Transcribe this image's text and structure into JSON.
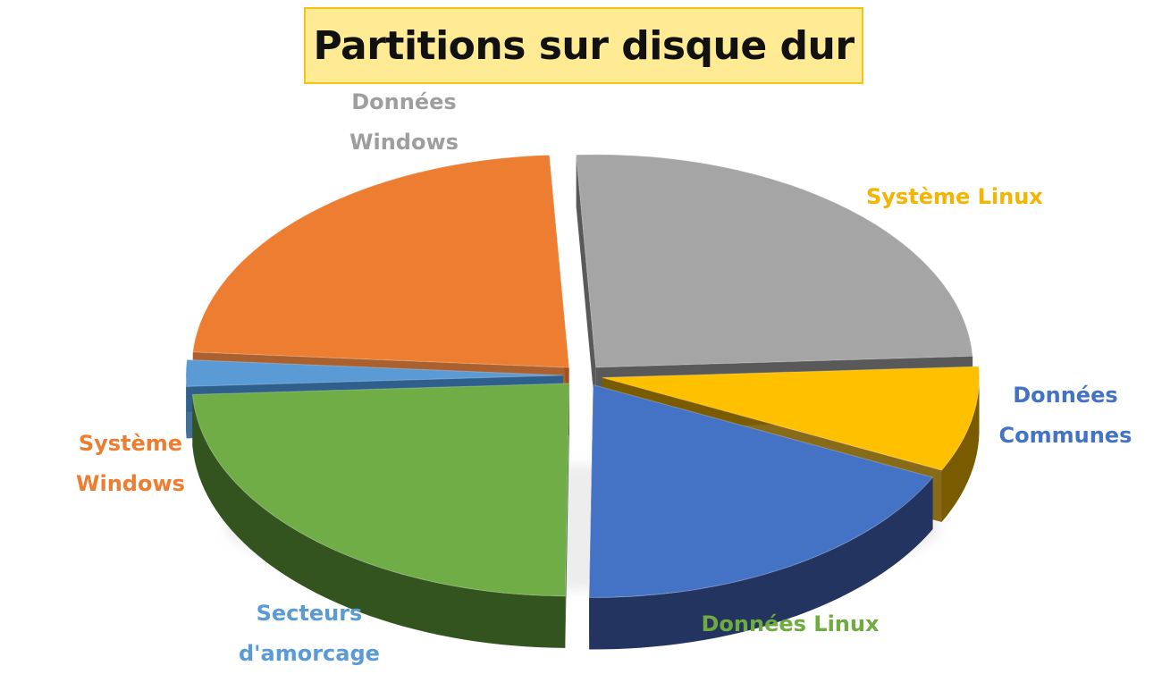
{
  "title": "Partitions sur disque dur",
  "chart_data": {
    "type": "pie",
    "title": "Partitions sur disque dur",
    "legend": "none",
    "slices": [
      {
        "label": "Données Windows",
        "label_lines": [
          "Données",
          "Windows"
        ],
        "value": 25,
        "color": "#a5a5a5",
        "side_color": "#474747",
        "label_color": "#9e9e9e"
      },
      {
        "label": "Système Linux",
        "label_lines": [
          "Système Linux"
        ],
        "value": 8,
        "color": "#ffc000",
        "side_color": "#7a5b00",
        "label_color": "#f5b400"
      },
      {
        "label": "Données Communes",
        "label_lines": [
          "Données",
          "Communes"
        ],
        "value": 18,
        "color": "#4472c4",
        "side_color": "#22345f",
        "label_color": "#4472c4"
      },
      {
        "label": "Données Linux",
        "label_lines": [
          "Données Linux"
        ],
        "value": 24,
        "color": "#70ad47",
        "side_color": "#34541f",
        "label_color": "#6fab3f"
      },
      {
        "label": "Secteurs d'amorcage",
        "label_lines": [
          "Secteurs",
          "d'amorcage"
        ],
        "value": 2,
        "color": "#5b9bd5",
        "side_color": "#2f5f8d",
        "label_color": "#5b9bd5"
      },
      {
        "label": "Système Windows",
        "label_lines": [
          "Système",
          "Windows"
        ],
        "value": 23,
        "color": "#ed7d31",
        "side_color": "#a24f1a",
        "label_color": "#ed7d31"
      }
    ]
  }
}
